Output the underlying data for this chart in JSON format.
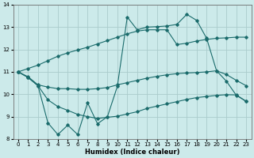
{
  "xlabel": "Humidex (Indice chaleur)",
  "background_color": "#cceaea",
  "grid_color": "#aacccc",
  "line_color": "#1a6b6b",
  "xlim": [
    -0.5,
    23.5
  ],
  "ylim": [
    8,
    14
  ],
  "xticks": [
    0,
    1,
    2,
    3,
    4,
    5,
    6,
    7,
    8,
    9,
    10,
    11,
    12,
    13,
    14,
    15,
    16,
    17,
    18,
    19,
    20,
    21,
    22,
    23
  ],
  "yticks": [
    8,
    9,
    10,
    11,
    12,
    13,
    14
  ],
  "x_all": [
    0,
    1,
    2,
    3,
    4,
    5,
    6,
    7,
    8,
    9,
    10,
    11,
    12,
    13,
    14,
    15,
    16,
    17,
    18,
    19,
    20,
    21,
    22,
    23
  ],
  "line_top": [
    11.0,
    11.15,
    11.3,
    11.5,
    11.7,
    11.85,
    11.98,
    12.1,
    12.25,
    12.4,
    12.55,
    12.7,
    12.82,
    12.88,
    12.88,
    12.88,
    12.22,
    12.28,
    12.38,
    12.45,
    12.5,
    12.52,
    12.55,
    12.55
  ],
  "line_mid": [
    11.0,
    10.78,
    10.42,
    10.32,
    10.25,
    10.25,
    10.22,
    10.22,
    10.25,
    10.3,
    10.42,
    10.52,
    10.62,
    10.72,
    10.8,
    10.87,
    10.92,
    10.95,
    10.97,
    11.0,
    11.05,
    10.88,
    10.62,
    10.38
  ],
  "line_low": [
    11.0,
    10.75,
    10.38,
    9.75,
    9.45,
    9.28,
    9.1,
    9.0,
    8.92,
    8.97,
    9.02,
    9.12,
    9.22,
    9.37,
    9.47,
    9.57,
    9.67,
    9.77,
    9.85,
    9.9,
    9.95,
    9.98,
    9.97,
    9.68
  ],
  "line_obs_x": [
    0,
    1,
    2,
    3,
    4,
    5,
    6,
    7,
    8,
    9,
    10,
    11,
    12,
    13,
    14,
    15,
    16,
    17,
    18,
    19,
    20,
    21,
    22,
    23
  ],
  "line_obs_y": [
    11.0,
    10.75,
    10.38,
    8.72,
    8.2,
    8.62,
    8.2,
    9.62,
    8.68,
    9.0,
    10.35,
    13.45,
    12.88,
    13.0,
    13.02,
    13.05,
    13.12,
    13.57,
    13.3,
    12.5,
    11.05,
    10.58,
    9.95,
    9.68
  ]
}
